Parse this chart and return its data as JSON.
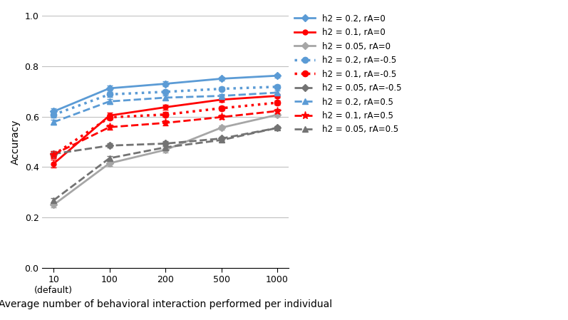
{
  "x_positions": [
    0,
    1,
    2,
    3,
    4
  ],
  "x_labels": [
    "10\n(default)",
    "100",
    "200",
    "500",
    "1000"
  ],
  "xlabel": "Average number of behavioral interaction performed per individual",
  "ylabel": "Accuracy",
  "ylim": [
    0,
    1.0
  ],
  "yticks": [
    0,
    0.2,
    0.4,
    0.6,
    0.8,
    1.0
  ],
  "series": [
    {
      "label": "h2 = 0.2, rA=0",
      "color": "#5B9BD5",
      "linestyle": "solid",
      "marker": "D",
      "markersize": 5,
      "linewidth": 2.0,
      "values": [
        0.62,
        0.712,
        0.73,
        0.75,
        0.762
      ],
      "yerr": [
        0.013,
        0.01,
        0.009,
        0.008,
        0.007
      ]
    },
    {
      "label": "h2 = 0.1, rA=0",
      "color": "#FF0000",
      "linestyle": "solid",
      "marker": "o",
      "markersize": 5,
      "linewidth": 2.0,
      "values": [
        0.413,
        0.604,
        0.637,
        0.667,
        0.682
      ],
      "yerr": [
        0.015,
        0.012,
        0.01,
        0.009,
        0.008
      ]
    },
    {
      "label": "h2 = 0.05, rA=0",
      "color": "#A6A6A6",
      "linestyle": "solid",
      "marker": "D",
      "markersize": 5,
      "linewidth": 2.0,
      "values": [
        0.25,
        0.415,
        0.468,
        0.556,
        0.607
      ],
      "yerr": [
        0.01,
        0.01,
        0.01,
        0.008,
        0.007
      ]
    },
    {
      "label": "h2 = 0.2, rA=-0.5",
      "color": "#5B9BD5",
      "linestyle": "dotted",
      "marker": "o",
      "markersize": 6,
      "linewidth": 2.5,
      "values": [
        0.607,
        0.688,
        0.698,
        0.71,
        0.718
      ],
      "yerr": [
        0.01,
        0.009,
        0.009,
        0.008,
        0.007
      ]
    },
    {
      "label": "h2 = 0.1, rA=-0.5",
      "color": "#FF0000",
      "linestyle": "dotted",
      "marker": "o",
      "markersize": 6,
      "linewidth": 2.5,
      "values": [
        0.448,
        0.597,
        0.608,
        0.633,
        0.655
      ],
      "yerr": [
        0.012,
        0.01,
        0.01,
        0.009,
        0.008
      ]
    },
    {
      "label": "h2 = 0.05, rA=-0.5",
      "color": "#737373",
      "linestyle": "dashed",
      "marker": "D",
      "markersize": 5,
      "linewidth": 2.0,
      "values": [
        0.452,
        0.485,
        0.493,
        0.513,
        0.555
      ],
      "yerr": [
        0.01,
        0.009,
        0.009,
        0.008,
        0.007
      ]
    },
    {
      "label": "h2 = 0.2, rA=0.5",
      "color": "#5B9BD5",
      "linestyle": "dashed",
      "marker": "^",
      "markersize": 6,
      "linewidth": 2.0,
      "values": [
        0.578,
        0.66,
        0.675,
        0.682,
        0.695
      ],
      "yerr": [
        0.01,
        0.009,
        0.009,
        0.008,
        0.007
      ]
    },
    {
      "label": "h2 = 0.1, rA=0.5",
      "color": "#FF0000",
      "linestyle": "dashed",
      "marker": "*",
      "markersize": 8,
      "linewidth": 2.0,
      "values": [
        0.45,
        0.558,
        0.575,
        0.598,
        0.622
      ],
      "yerr": [
        0.012,
        0.01,
        0.01,
        0.009,
        0.008
      ]
    },
    {
      "label": "h2 = 0.05, rA=0.5",
      "color": "#737373",
      "linestyle": "dashed",
      "marker": "^",
      "markersize": 6,
      "linewidth": 2.0,
      "values": [
        0.268,
        0.435,
        0.478,
        0.507,
        0.555
      ],
      "yerr": [
        0.01,
        0.009,
        0.009,
        0.008,
        0.007
      ]
    }
  ],
  "background_color": "#FFFFFF",
  "grid_color": "#C0C0C0"
}
